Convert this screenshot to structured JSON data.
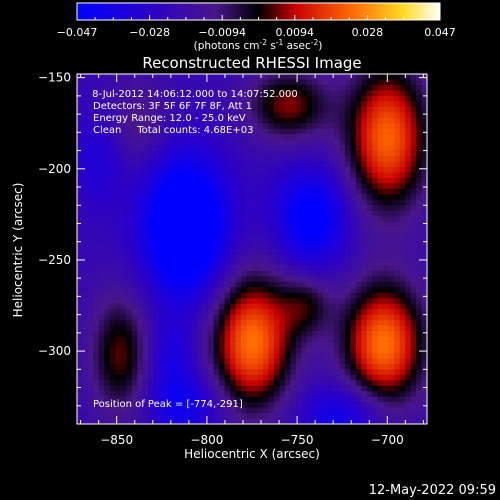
{
  "chart_data": {
    "type": "heatmap",
    "colorbar": {
      "tick_labels": [
        "-0.047",
        "-0.028",
        "-0.0094",
        "0.0094",
        "0.028",
        "0.047"
      ],
      "range": [
        -0.047,
        0.047
      ],
      "units_label": "(photons cm",
      "units_sup1": "-2",
      "units_mid1": " s",
      "units_sup2": "-1",
      "units_mid2": " asec",
      "units_sup3": "-2",
      "units_end": ")"
    },
    "title": "Reconstructed RHESSI Image",
    "annotations": [
      " 8-Jul-2012 14:06:12.000 to 14:07:52.000",
      "Detectors: 3F 5F 6F 7F 8F, Att 1",
      "Energy Range: 12.0 - 25.0 keV",
      "Clean     Total counts: 4.68E+03"
    ],
    "peak_label": "Position of Peak = [-774,-291]",
    "xlabel": "Heliocentric X (arcsec)",
    "ylabel": "Heliocentric Y (arcsec)",
    "xlim": [
      -872,
      -678
    ],
    "ylim": [
      -340,
      -148
    ],
    "x_ticks": [
      -850,
      -800,
      -750,
      -700
    ],
    "y_ticks": [
      -300,
      -250,
      -200,
      -150
    ],
    "x_tick_labels": [
      "−850",
      "−800",
      "−750",
      "−700"
    ],
    "y_tick_labels": [
      "−300",
      "−250",
      "−200",
      "−150"
    ],
    "blobs": [
      {
        "x": -775,
        "y": -295,
        "amp": 0.047,
        "sx": 16,
        "sy": 26
      },
      {
        "x": -702,
        "y": -296,
        "amp": 0.047,
        "sx": 16,
        "sy": 24
      },
      {
        "x": -700,
        "y": -183,
        "amp": 0.045,
        "sx": 16,
        "sy": 28
      },
      {
        "x": -755,
        "y": -165,
        "amp": 0.028,
        "sx": 16,
        "sy": 14
      },
      {
        "x": -848,
        "y": -302,
        "amp": 0.026,
        "sx": 12,
        "sy": 24
      },
      {
        "x": -745,
        "y": -275,
        "amp": 0.018,
        "sx": 10,
        "sy": 12
      },
      {
        "x": -838,
        "y": -175,
        "amp": 0.012,
        "sx": 12,
        "sy": 18
      },
      {
        "x": -812,
        "y": -232,
        "amp": -0.047,
        "sx": 16,
        "sy": 26
      },
      {
        "x": -742,
        "y": -227,
        "amp": -0.03,
        "sx": 14,
        "sy": 18
      },
      {
        "x": -820,
        "y": -305,
        "amp": -0.014,
        "sx": 10,
        "sy": 16
      },
      {
        "x": -725,
        "y": -335,
        "amp": -0.02,
        "sx": 16,
        "sy": 12
      },
      {
        "x": -812,
        "y": -330,
        "amp": -0.018,
        "sx": 14,
        "sy": 12
      },
      {
        "x": -860,
        "y": -195,
        "amp": -0.012,
        "sx": 10,
        "sy": 18
      }
    ],
    "background": -0.022
  },
  "footer": {
    "timestamp": "12-May-2022 09:59"
  }
}
